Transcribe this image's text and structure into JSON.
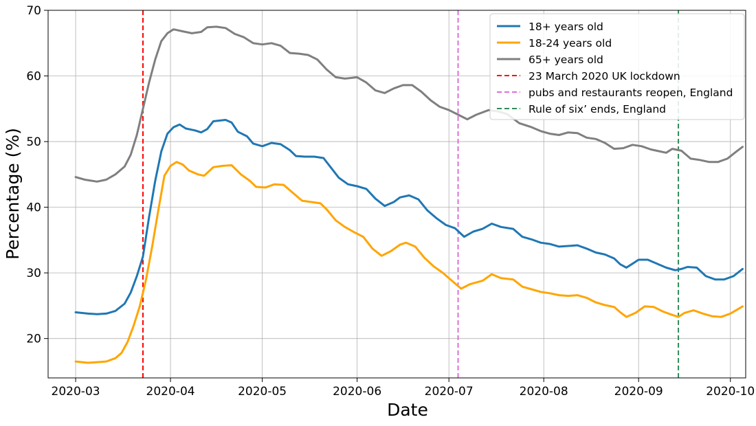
{
  "chart_data": {
    "type": "line",
    "xlabel": "Date",
    "ylabel": "Percentage (%)",
    "x_axis_type": "date",
    "xlim": [
      "2020-02-21",
      "2020-10-06"
    ],
    "ylim": [
      14,
      70
    ],
    "x_ticks": [
      "2020-03-01",
      "2020-04-01",
      "2020-05-01",
      "2020-06-01",
      "2020-07-01",
      "2020-08-01",
      "2020-09-01",
      "2020-10-01"
    ],
    "x_tick_labels": [
      "2020-03",
      "2020-04",
      "2020-05",
      "2020-06",
      "2020-07",
      "2020-08",
      "2020-09",
      "2020-10"
    ],
    "y_ticks": [
      20,
      30,
      40,
      50,
      60,
      70
    ],
    "y_tick_labels": [
      "20",
      "30",
      "40",
      "50",
      "60",
      "70"
    ],
    "grid": true,
    "legend_position": "top-right",
    "series": [
      {
        "name": "18+ years old",
        "color": "#1f77b4",
        "points": [
          [
            "2020-03-01",
            24.0
          ],
          [
            "2020-03-05",
            23.8
          ],
          [
            "2020-03-08",
            23.7
          ],
          [
            "2020-03-11",
            23.8
          ],
          [
            "2020-03-14",
            24.2
          ],
          [
            "2020-03-17",
            25.3
          ],
          [
            "2020-03-19",
            27.0
          ],
          [
            "2020-03-21",
            29.5
          ],
          [
            "2020-03-23",
            32.5
          ],
          [
            "2020-03-25",
            38.5
          ],
          [
            "2020-03-27",
            44.0
          ],
          [
            "2020-03-29",
            48.5
          ],
          [
            "2020-03-31",
            51.2
          ],
          [
            "2020-04-02",
            52.2
          ],
          [
            "2020-04-04",
            52.6
          ],
          [
            "2020-04-06",
            52.0
          ],
          [
            "2020-04-09",
            51.7
          ],
          [
            "2020-04-11",
            51.4
          ],
          [
            "2020-04-13",
            51.9
          ],
          [
            "2020-04-15",
            53.1
          ],
          [
            "2020-04-17",
            53.2
          ],
          [
            "2020-04-19",
            53.3
          ],
          [
            "2020-04-21",
            52.9
          ],
          [
            "2020-04-23",
            51.5
          ],
          [
            "2020-04-26",
            50.8
          ],
          [
            "2020-04-28",
            49.7
          ],
          [
            "2020-05-01",
            49.3
          ],
          [
            "2020-05-04",
            49.8
          ],
          [
            "2020-05-07",
            49.6
          ],
          [
            "2020-05-10",
            48.7
          ],
          [
            "2020-05-12",
            47.8
          ],
          [
            "2020-05-15",
            47.7
          ],
          [
            "2020-05-18",
            47.7
          ],
          [
            "2020-05-21",
            47.5
          ],
          [
            "2020-05-23",
            46.3
          ],
          [
            "2020-05-26",
            44.5
          ],
          [
            "2020-05-29",
            43.5
          ],
          [
            "2020-06-01",
            43.2
          ],
          [
            "2020-06-04",
            42.8
          ],
          [
            "2020-06-07",
            41.3
          ],
          [
            "2020-06-10",
            40.2
          ],
          [
            "2020-06-13",
            40.8
          ],
          [
            "2020-06-15",
            41.5
          ],
          [
            "2020-06-18",
            41.8
          ],
          [
            "2020-06-21",
            41.2
          ],
          [
            "2020-06-24",
            39.5
          ],
          [
            "2020-06-27",
            38.3
          ],
          [
            "2020-06-30",
            37.3
          ],
          [
            "2020-07-03",
            36.8
          ],
          [
            "2020-07-06",
            35.5
          ],
          [
            "2020-07-09",
            36.3
          ],
          [
            "2020-07-12",
            36.7
          ],
          [
            "2020-07-15",
            37.5
          ],
          [
            "2020-07-18",
            37.0
          ],
          [
            "2020-07-22",
            36.7
          ],
          [
            "2020-07-25",
            35.5
          ],
          [
            "2020-07-28",
            35.1
          ],
          [
            "2020-07-31",
            34.6
          ],
          [
            "2020-08-03",
            34.4
          ],
          [
            "2020-08-06",
            34.0
          ],
          [
            "2020-08-09",
            34.1
          ],
          [
            "2020-08-12",
            34.2
          ],
          [
            "2020-08-15",
            33.7
          ],
          [
            "2020-08-18",
            33.1
          ],
          [
            "2020-08-21",
            32.8
          ],
          [
            "2020-08-24",
            32.2
          ],
          [
            "2020-08-26",
            31.3
          ],
          [
            "2020-08-28",
            30.8
          ],
          [
            "2020-08-30",
            31.4
          ],
          [
            "2020-09-01",
            32.0
          ],
          [
            "2020-09-04",
            32.0
          ],
          [
            "2020-09-07",
            31.4
          ],
          [
            "2020-09-10",
            30.8
          ],
          [
            "2020-09-13",
            30.4
          ],
          [
            "2020-09-15",
            30.6
          ],
          [
            "2020-09-17",
            30.9
          ],
          [
            "2020-09-20",
            30.8
          ],
          [
            "2020-09-23",
            29.5
          ],
          [
            "2020-09-26",
            29.0
          ],
          [
            "2020-09-29",
            29.0
          ],
          [
            "2020-10-02",
            29.5
          ],
          [
            "2020-10-05",
            30.6
          ]
        ]
      },
      {
        "name": "18-24 years old",
        "color": "#ffa500",
        "points": [
          [
            "2020-03-01",
            16.5
          ],
          [
            "2020-03-05",
            16.3
          ],
          [
            "2020-03-08",
            16.4
          ],
          [
            "2020-03-11",
            16.5
          ],
          [
            "2020-03-14",
            17.0
          ],
          [
            "2020-03-16",
            17.8
          ],
          [
            "2020-03-18",
            19.5
          ],
          [
            "2020-03-20",
            22.0
          ],
          [
            "2020-03-22",
            25.0
          ],
          [
            "2020-03-24",
            29.0
          ],
          [
            "2020-03-26",
            34.0
          ],
          [
            "2020-03-28",
            39.5
          ],
          [
            "2020-03-30",
            44.8
          ],
          [
            "2020-04-01",
            46.3
          ],
          [
            "2020-04-03",
            46.9
          ],
          [
            "2020-04-05",
            46.5
          ],
          [
            "2020-04-07",
            45.6
          ],
          [
            "2020-04-10",
            45.0
          ],
          [
            "2020-04-12",
            44.8
          ],
          [
            "2020-04-15",
            46.1
          ],
          [
            "2020-04-18",
            46.3
          ],
          [
            "2020-04-21",
            46.4
          ],
          [
            "2020-04-24",
            45.0
          ],
          [
            "2020-04-27",
            44.0
          ],
          [
            "2020-04-29",
            43.1
          ],
          [
            "2020-05-02",
            43.0
          ],
          [
            "2020-05-05",
            43.5
          ],
          [
            "2020-05-08",
            43.4
          ],
          [
            "2020-05-11",
            42.2
          ],
          [
            "2020-05-14",
            41.0
          ],
          [
            "2020-05-17",
            40.8
          ],
          [
            "2020-05-20",
            40.6
          ],
          [
            "2020-05-22",
            39.7
          ],
          [
            "2020-05-25",
            38.0
          ],
          [
            "2020-05-28",
            37.0
          ],
          [
            "2020-05-31",
            36.2
          ],
          [
            "2020-06-03",
            35.5
          ],
          [
            "2020-06-06",
            33.7
          ],
          [
            "2020-06-09",
            32.6
          ],
          [
            "2020-06-12",
            33.3
          ],
          [
            "2020-06-15",
            34.3
          ],
          [
            "2020-06-17",
            34.6
          ],
          [
            "2020-06-20",
            34.0
          ],
          [
            "2020-06-23",
            32.3
          ],
          [
            "2020-06-26",
            31.0
          ],
          [
            "2020-06-29",
            30.0
          ],
          [
            "2020-07-02",
            28.8
          ],
          [
            "2020-07-05",
            27.6
          ],
          [
            "2020-07-08",
            28.3
          ],
          [
            "2020-07-12",
            28.8
          ],
          [
            "2020-07-15",
            29.8
          ],
          [
            "2020-07-18",
            29.2
          ],
          [
            "2020-07-22",
            29.0
          ],
          [
            "2020-07-25",
            27.9
          ],
          [
            "2020-07-28",
            27.5
          ],
          [
            "2020-07-31",
            27.1
          ],
          [
            "2020-08-03",
            26.9
          ],
          [
            "2020-08-06",
            26.6
          ],
          [
            "2020-08-09",
            26.5
          ],
          [
            "2020-08-12",
            26.6
          ],
          [
            "2020-08-15",
            26.2
          ],
          [
            "2020-08-18",
            25.5
          ],
          [
            "2020-08-21",
            25.1
          ],
          [
            "2020-08-24",
            24.8
          ],
          [
            "2020-08-26",
            24.0
          ],
          [
            "2020-08-28",
            23.3
          ],
          [
            "2020-08-31",
            23.9
          ],
          [
            "2020-09-03",
            24.9
          ],
          [
            "2020-09-06",
            24.8
          ],
          [
            "2020-09-09",
            24.1
          ],
          [
            "2020-09-12",
            23.6
          ],
          [
            "2020-09-14",
            23.3
          ],
          [
            "2020-09-16",
            23.9
          ],
          [
            "2020-09-19",
            24.3
          ],
          [
            "2020-09-22",
            23.8
          ],
          [
            "2020-09-25",
            23.4
          ],
          [
            "2020-09-28",
            23.3
          ],
          [
            "2020-10-01",
            23.8
          ],
          [
            "2020-10-05",
            24.9
          ]
        ]
      },
      {
        "name": "65+ years old",
        "color": "#7f7f7f",
        "points": [
          [
            "2020-03-01",
            44.6
          ],
          [
            "2020-03-04",
            44.2
          ],
          [
            "2020-03-08",
            43.9
          ],
          [
            "2020-03-11",
            44.2
          ],
          [
            "2020-03-14",
            45.0
          ],
          [
            "2020-03-17",
            46.2
          ],
          [
            "2020-03-19",
            48.0
          ],
          [
            "2020-03-21",
            51.0
          ],
          [
            "2020-03-23",
            55.0
          ],
          [
            "2020-03-25",
            59.0
          ],
          [
            "2020-03-27",
            62.5
          ],
          [
            "2020-03-29",
            65.3
          ],
          [
            "2020-03-31",
            66.5
          ],
          [
            "2020-04-02",
            67.1
          ],
          [
            "2020-04-05",
            66.8
          ],
          [
            "2020-04-08",
            66.5
          ],
          [
            "2020-04-11",
            66.7
          ],
          [
            "2020-04-13",
            67.4
          ],
          [
            "2020-04-16",
            67.5
          ],
          [
            "2020-04-19",
            67.3
          ],
          [
            "2020-04-22",
            66.4
          ],
          [
            "2020-04-25",
            65.9
          ],
          [
            "2020-04-28",
            65.0
          ],
          [
            "2020-05-01",
            64.8
          ],
          [
            "2020-05-04",
            65.0
          ],
          [
            "2020-05-07",
            64.6
          ],
          [
            "2020-05-10",
            63.5
          ],
          [
            "2020-05-13",
            63.4
          ],
          [
            "2020-05-16",
            63.2
          ],
          [
            "2020-05-19",
            62.5
          ],
          [
            "2020-05-22",
            61.0
          ],
          [
            "2020-05-25",
            59.8
          ],
          [
            "2020-05-28",
            59.6
          ],
          [
            "2020-06-01",
            59.8
          ],
          [
            "2020-06-04",
            59.0
          ],
          [
            "2020-06-07",
            57.8
          ],
          [
            "2020-06-10",
            57.4
          ],
          [
            "2020-06-13",
            58.1
          ],
          [
            "2020-06-16",
            58.6
          ],
          [
            "2020-06-19",
            58.6
          ],
          [
            "2020-06-22",
            57.6
          ],
          [
            "2020-06-25",
            56.3
          ],
          [
            "2020-06-28",
            55.3
          ],
          [
            "2020-07-01",
            54.8
          ],
          [
            "2020-07-04",
            54.1
          ],
          [
            "2020-07-07",
            53.4
          ],
          [
            "2020-07-10",
            54.1
          ],
          [
            "2020-07-14",
            54.8
          ],
          [
            "2020-07-17",
            54.6
          ],
          [
            "2020-07-20",
            54.2
          ],
          [
            "2020-07-24",
            52.8
          ],
          [
            "2020-07-28",
            52.2
          ],
          [
            "2020-07-31",
            51.6
          ],
          [
            "2020-08-03",
            51.2
          ],
          [
            "2020-08-06",
            51.0
          ],
          [
            "2020-08-09",
            51.4
          ],
          [
            "2020-08-12",
            51.3
          ],
          [
            "2020-08-15",
            50.6
          ],
          [
            "2020-08-18",
            50.4
          ],
          [
            "2020-08-21",
            49.8
          ],
          [
            "2020-08-24",
            48.9
          ],
          [
            "2020-08-27",
            49.0
          ],
          [
            "2020-08-30",
            49.5
          ],
          [
            "2020-09-02",
            49.3
          ],
          [
            "2020-09-05",
            48.8
          ],
          [
            "2020-09-08",
            48.5
          ],
          [
            "2020-09-10",
            48.3
          ],
          [
            "2020-09-12",
            48.9
          ],
          [
            "2020-09-15",
            48.6
          ],
          [
            "2020-09-18",
            47.4
          ],
          [
            "2020-09-21",
            47.2
          ],
          [
            "2020-09-24",
            46.9
          ],
          [
            "2020-09-27",
            46.9
          ],
          [
            "2020-09-30",
            47.4
          ],
          [
            "2020-10-03",
            48.5
          ],
          [
            "2020-10-05",
            49.2
          ]
        ]
      }
    ],
    "reference_lines": [
      {
        "name": "23 March 2020 UK lockdown",
        "x": "2020-03-23",
        "color": "#ff0000"
      },
      {
        "name": "pubs and restaurants reopen, England",
        "x": "2020-07-04",
        "color": "#da70d6"
      },
      {
        "name": "Rule of six’ ends, England",
        "x": "2020-09-14",
        "color": "#2e8b57"
      }
    ]
  }
}
